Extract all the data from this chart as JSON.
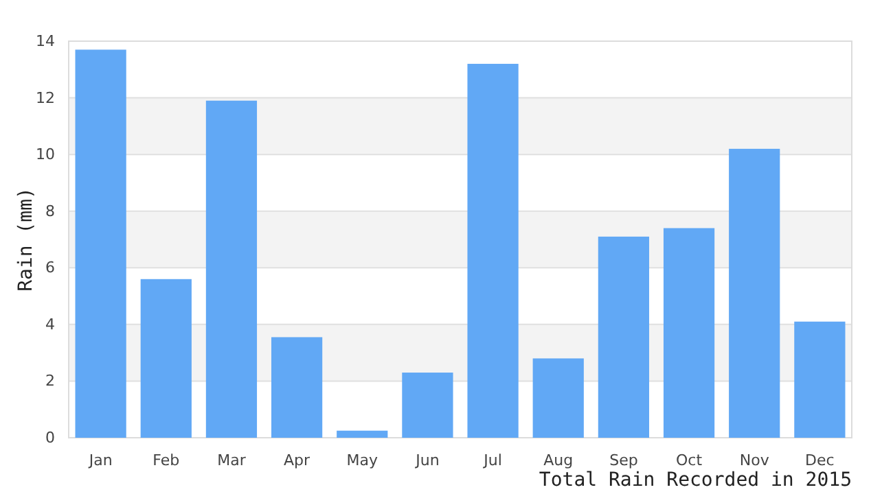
{
  "chart_data": {
    "type": "bar",
    "xlabel": "Total Rain Recorded in 2015",
    "ylabel": "Rain (mm)",
    "categories": [
      "Jan",
      "Feb",
      "Mar",
      "Apr",
      "May",
      "Jun",
      "Jul",
      "Aug",
      "Sep",
      "Oct",
      "Nov",
      "Dec"
    ],
    "values": [
      13.7,
      5.6,
      11.9,
      3.55,
      0.25,
      2.3,
      13.2,
      2.8,
      7.1,
      7.4,
      10.2,
      4.1
    ],
    "color": "#61a8f5",
    "ylim": [
      0,
      14
    ],
    "yticks": [
      0,
      2,
      4,
      6,
      8,
      10,
      12,
      14
    ],
    "grid": "y"
  }
}
